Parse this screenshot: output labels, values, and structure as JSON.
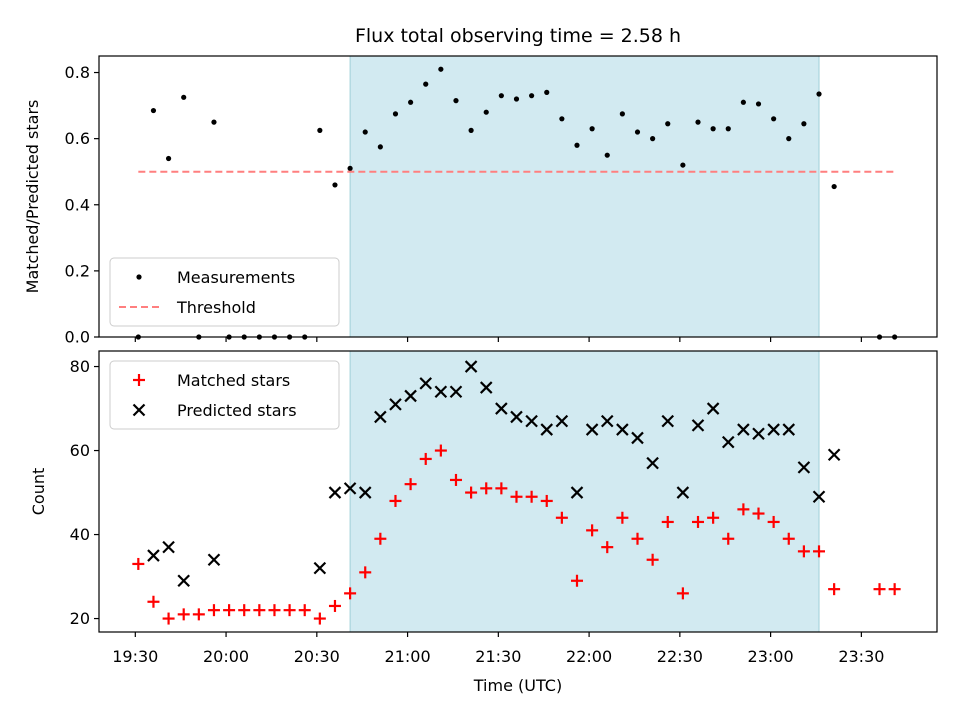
{
  "chart_data": {
    "type": "scatter",
    "title": "Flux total observing time = 2.58 h",
    "xlabel": "Time (UTC)",
    "x_ticks": [
      "19:30",
      "20:00",
      "20:30",
      "21:00",
      "21:30",
      "22:00",
      "22:30",
      "23:00",
      "23:30"
    ],
    "x_range_minutes_utc": [
      1158,
      1435
    ],
    "shaded_interval": {
      "start": "20:41",
      "end": "23:16",
      "color": "#add8e6"
    },
    "panels": [
      {
        "name": "ratio",
        "ylabel": "Matched/Predicted stars",
        "ylim": [
          0,
          0.85
        ],
        "yticks": [
          0.0,
          0.2,
          0.4,
          0.6,
          0.8
        ],
        "ytick_labels": [
          "0.0",
          "0.2",
          "0.4",
          "0.6",
          "0.8"
        ],
        "legend_position": "lower-left",
        "series": [
          {
            "name": "Measurements",
            "marker": "dot",
            "color": "#000000",
            "points": [
              [
                "19:31",
                0.0
              ],
              [
                "19:36",
                0.685
              ],
              [
                "19:41",
                0.54
              ],
              [
                "19:46",
                0.725
              ],
              [
                "19:51",
                0.0
              ],
              [
                "19:56",
                0.65
              ],
              [
                "20:01",
                0.0
              ],
              [
                "20:06",
                0.0
              ],
              [
                "20:11",
                0.0
              ],
              [
                "20:16",
                0.0
              ],
              [
                "20:21",
                0.0
              ],
              [
                "20:26",
                0.0
              ],
              [
                "20:31",
                0.625
              ],
              [
                "20:36",
                0.46
              ],
              [
                "20:41",
                0.51
              ],
              [
                "20:46",
                0.62
              ],
              [
                "20:51",
                0.575
              ],
              [
                "20:56",
                0.675
              ],
              [
                "21:01",
                0.71
              ],
              [
                "21:06",
                0.765
              ],
              [
                "21:11",
                0.81
              ],
              [
                "21:16",
                0.715
              ],
              [
                "21:21",
                0.625
              ],
              [
                "21:26",
                0.68
              ],
              [
                "21:31",
                0.73
              ],
              [
                "21:36",
                0.72
              ],
              [
                "21:41",
                0.73
              ],
              [
                "21:46",
                0.74
              ],
              [
                "21:51",
                0.66
              ],
              [
                "21:56",
                0.58
              ],
              [
                "22:01",
                0.63
              ],
              [
                "22:06",
                0.55
              ],
              [
                "22:11",
                0.675
              ],
              [
                "22:16",
                0.62
              ],
              [
                "22:21",
                0.6
              ],
              [
                "22:26",
                0.645
              ],
              [
                "22:31",
                0.52
              ],
              [
                "22:36",
                0.65
              ],
              [
                "22:41",
                0.63
              ],
              [
                "22:46",
                0.63
              ],
              [
                "22:51",
                0.71
              ],
              [
                "22:56",
                0.705
              ],
              [
                "23:01",
                0.66
              ],
              [
                "23:06",
                0.6
              ],
              [
                "23:11",
                0.645
              ],
              [
                "23:16",
                0.735
              ],
              [
                "23:21",
                0.455
              ],
              [
                "23:36",
                0.0
              ],
              [
                "23:41",
                0.0
              ]
            ]
          },
          {
            "name": "Threshold",
            "marker": "dashed-line",
            "color": "#ff7f7f",
            "value": 0.5,
            "x_span": [
              "19:31",
              "23:41"
            ]
          }
        ]
      },
      {
        "name": "counts",
        "ylabel": "Count",
        "ylim": [
          16.8,
          83.7
        ],
        "yticks": [
          20,
          40,
          60,
          80
        ],
        "ytick_labels": [
          "20",
          "40",
          "60",
          "80"
        ],
        "legend_position": "upper-left",
        "series": [
          {
            "name": "Matched stars",
            "marker": "plus",
            "color": "#ff0000",
            "points": [
              [
                "19:31",
                33
              ],
              [
                "19:36",
                24
              ],
              [
                "19:41",
                20
              ],
              [
                "19:46",
                21
              ],
              [
                "19:51",
                21
              ],
              [
                "19:56",
                22
              ],
              [
                "20:01",
                22
              ],
              [
                "20:06",
                22
              ],
              [
                "20:11",
                22
              ],
              [
                "20:16",
                22
              ],
              [
                "20:21",
                22
              ],
              [
                "20:26",
                22
              ],
              [
                "20:31",
                20
              ],
              [
                "20:36",
                23
              ],
              [
                "20:41",
                26
              ],
              [
                "20:46",
                31
              ],
              [
                "20:51",
                39
              ],
              [
                "20:56",
                48
              ],
              [
                "21:01",
                52
              ],
              [
                "21:06",
                58
              ],
              [
                "21:11",
                60
              ],
              [
                "21:16",
                53
              ],
              [
                "21:21",
                50
              ],
              [
                "21:26",
                51
              ],
              [
                "21:31",
                51
              ],
              [
                "21:36",
                49
              ],
              [
                "21:41",
                49
              ],
              [
                "21:46",
                48
              ],
              [
                "21:51",
                44
              ],
              [
                "21:56",
                29
              ],
              [
                "22:01",
                41
              ],
              [
                "22:06",
                37
              ],
              [
                "22:11",
                44
              ],
              [
                "22:16",
                39
              ],
              [
                "22:21",
                34
              ],
              [
                "22:26",
                43
              ],
              [
                "22:31",
                26
              ],
              [
                "22:36",
                43
              ],
              [
                "22:41",
                44
              ],
              [
                "22:46",
                39
              ],
              [
                "22:51",
                46
              ],
              [
                "22:56",
                45
              ],
              [
                "23:01",
                43
              ],
              [
                "23:06",
                39
              ],
              [
                "23:11",
                36
              ],
              [
                "23:16",
                36
              ],
              [
                "23:21",
                27
              ],
              [
                "23:36",
                27
              ],
              [
                "23:41",
                27
              ]
            ]
          },
          {
            "name": "Predicted stars",
            "marker": "x",
            "color": "#000000",
            "points": [
              [
                "19:36",
                35
              ],
              [
                "19:41",
                37
              ],
              [
                "19:46",
                29
              ],
              [
                "19:56",
                34
              ],
              [
                "20:31",
                32
              ],
              [
                "20:36",
                50
              ],
              [
                "20:41",
                51
              ],
              [
                "20:46",
                50
              ],
              [
                "20:51",
                68
              ],
              [
                "20:56",
                71
              ],
              [
                "21:01",
                73
              ],
              [
                "21:06",
                76
              ],
              [
                "21:11",
                74
              ],
              [
                "21:16",
                74
              ],
              [
                "21:21",
                80
              ],
              [
                "21:26",
                75
              ],
              [
                "21:31",
                70
              ],
              [
                "21:36",
                68
              ],
              [
                "21:41",
                67
              ],
              [
                "21:46",
                65
              ],
              [
                "21:51",
                67
              ],
              [
                "21:56",
                50
              ],
              [
                "22:01",
                65
              ],
              [
                "22:06",
                67
              ],
              [
                "22:11",
                65
              ],
              [
                "22:16",
                63
              ],
              [
                "22:21",
                57
              ],
              [
                "22:26",
                67
              ],
              [
                "22:31",
                50
              ],
              [
                "22:36",
                66
              ],
              [
                "22:41",
                70
              ],
              [
                "22:46",
                62
              ],
              [
                "22:51",
                65
              ],
              [
                "22:56",
                64
              ],
              [
                "23:01",
                65
              ],
              [
                "23:06",
                65
              ],
              [
                "23:11",
                56
              ],
              [
                "23:16",
                49
              ],
              [
                "23:21",
                59
              ]
            ]
          }
        ]
      }
    ]
  }
}
